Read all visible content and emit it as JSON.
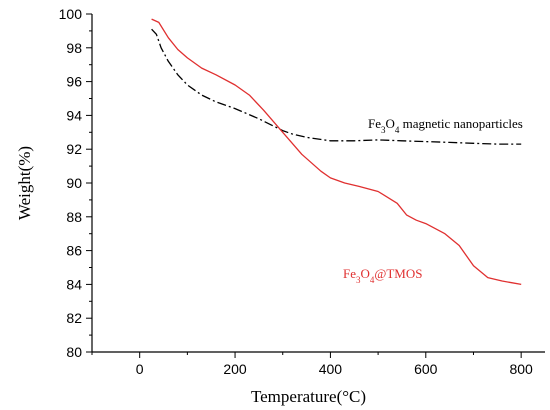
{
  "chart_data": {
    "type": "line",
    "xlabel": "Temperature(°C)",
    "ylabel": "Weight(%)",
    "xlim": [
      -100,
      850
    ],
    "ylim": [
      80,
      100
    ],
    "x_ticks": [
      0,
      200,
      400,
      600,
      800
    ],
    "y_ticks": [
      80,
      82,
      84,
      86,
      88,
      90,
      92,
      94,
      96,
      98,
      100
    ],
    "grid": false,
    "legend": "none",
    "series": [
      {
        "name": "Fe3O4 magnetic nanoparticles",
        "label_parts": [
          {
            "text": "Fe",
            "sub": false
          },
          {
            "text": "3",
            "sub": true
          },
          {
            "text": "O",
            "sub": false
          },
          {
            "text": "4",
            "sub": true
          },
          {
            "text": " magnetic nanoparticles",
            "sub": false
          }
        ],
        "color": "#000000",
        "dash": true,
        "x": [
          25,
          35,
          45,
          60,
          80,
          100,
          130,
          160,
          200,
          250,
          300,
          320,
          350,
          400,
          450,
          500,
          550,
          600,
          650,
          700,
          750,
          800
        ],
        "y": [
          99.1,
          98.8,
          98.0,
          97.2,
          96.4,
          95.8,
          95.2,
          94.8,
          94.4,
          93.8,
          93.1,
          92.9,
          92.7,
          92.5,
          92.5,
          92.55,
          92.5,
          92.45,
          92.4,
          92.35,
          92.3,
          92.3
        ]
      },
      {
        "name": "Fe3O4@TMOS",
        "label_parts": [
          {
            "text": "Fe",
            "sub": false
          },
          {
            "text": "3",
            "sub": true
          },
          {
            "text": "O",
            "sub": false
          },
          {
            "text": "4",
            "sub": true
          },
          {
            "text": "@TMOS",
            "sub": false
          }
        ],
        "color": "#e03030",
        "dash": false,
        "x": [
          25,
          40,
          60,
          80,
          100,
          130,
          160,
          200,
          230,
          260,
          300,
          340,
          380,
          400,
          430,
          460,
          500,
          540,
          560,
          580,
          600,
          640,
          670,
          700,
          730,
          760,
          780,
          800
        ],
        "y": [
          99.7,
          99.5,
          98.6,
          97.9,
          97.4,
          96.8,
          96.4,
          95.8,
          95.2,
          94.3,
          93.0,
          91.7,
          90.7,
          90.3,
          90.0,
          89.8,
          89.5,
          88.8,
          88.1,
          87.8,
          87.6,
          87.0,
          86.3,
          85.1,
          84.4,
          84.2,
          84.1,
          84.0
        ]
      }
    ]
  }
}
